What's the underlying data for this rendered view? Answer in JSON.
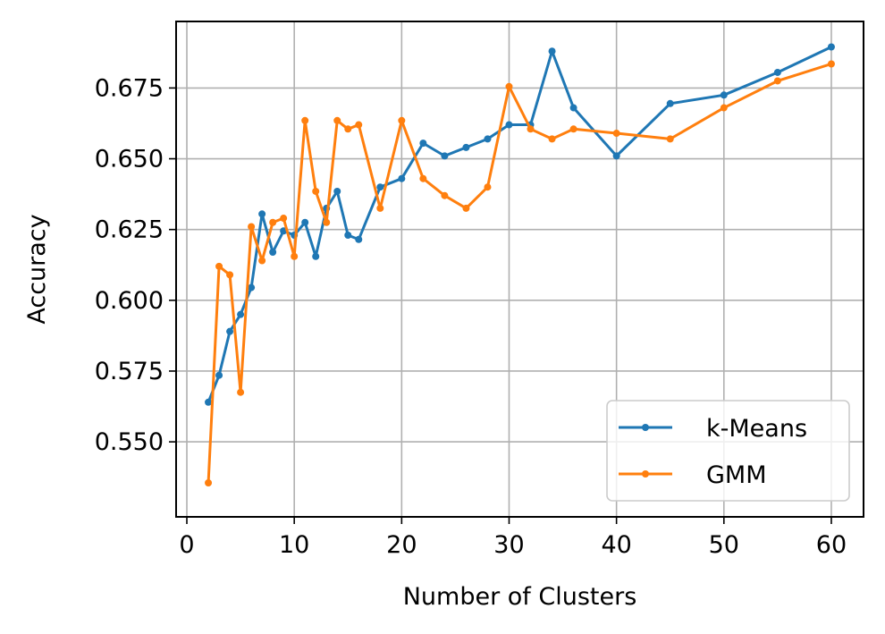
{
  "chart_data": {
    "type": "line",
    "xlabel": "Number of Clusters",
    "ylabel": "Accuracy",
    "xlim": [
      -1,
      63
    ],
    "ylim": [
      0.5235,
      0.6985
    ],
    "xticks": [
      0,
      10,
      20,
      30,
      40,
      50,
      60
    ],
    "yticks": [
      0.55,
      0.575,
      0.6,
      0.625,
      0.65,
      0.675
    ],
    "xtick_labels": [
      "0",
      "10",
      "20",
      "30",
      "40",
      "50",
      "60"
    ],
    "ytick_labels": [
      "0.550",
      "0.575",
      "0.600",
      "0.625",
      "0.650",
      "0.675"
    ],
    "grid": true,
    "legend": "lower-right",
    "series": [
      {
        "name": "k-Means",
        "color": "#1f77b4",
        "x": [
          2,
          3,
          4,
          5,
          6,
          7,
          8,
          9,
          10,
          11,
          12,
          13,
          14,
          15,
          16,
          18,
          20,
          22,
          24,
          26,
          28,
          30,
          32,
          34,
          36,
          40,
          45,
          50,
          55,
          60
        ],
        "y": [
          0.564,
          0.5735,
          0.589,
          0.595,
          0.6045,
          0.6305,
          0.617,
          0.6245,
          0.623,
          0.6275,
          0.6155,
          0.6325,
          0.6385,
          0.623,
          0.6215,
          0.64,
          0.643,
          0.6555,
          0.651,
          0.654,
          0.657,
          0.662,
          0.662,
          0.688,
          0.668,
          0.651,
          0.6695,
          0.6725,
          0.6805,
          0.6895
        ]
      },
      {
        "name": "GMM",
        "color": "#ff7f0e",
        "x": [
          2,
          3,
          4,
          5,
          6,
          7,
          8,
          9,
          10,
          11,
          12,
          13,
          14,
          15,
          16,
          18,
          20,
          22,
          24,
          26,
          28,
          30,
          32,
          34,
          36,
          40,
          45,
          50,
          55,
          60
        ],
        "y": [
          0.5355,
          0.612,
          0.609,
          0.5675,
          0.626,
          0.614,
          0.6275,
          0.629,
          0.6155,
          0.6635,
          0.6385,
          0.6275,
          0.6635,
          0.6605,
          0.662,
          0.6325,
          0.6635,
          0.643,
          0.637,
          0.6325,
          0.64,
          0.6755,
          0.6605,
          0.657,
          0.6605,
          0.659,
          0.657,
          0.668,
          0.6775,
          0.6835
        ]
      }
    ]
  }
}
